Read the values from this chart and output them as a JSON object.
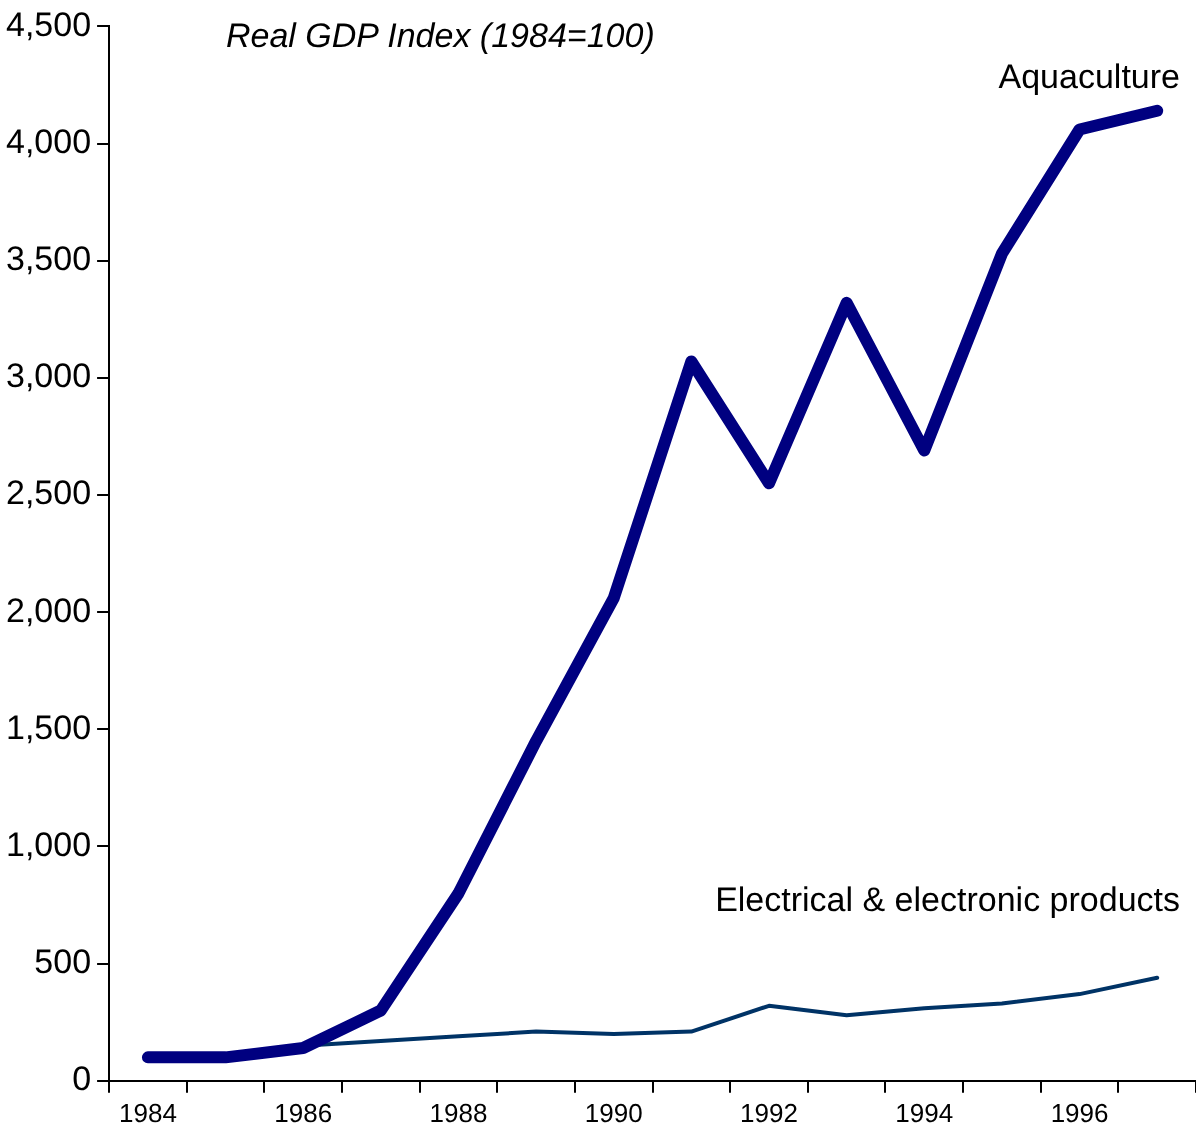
{
  "chart_data": {
    "type": "line",
    "title": "Real GDP Index (1984=100)",
    "categories": [
      "1984",
      null,
      "1986",
      null,
      "1988",
      null,
      "1990",
      null,
      "1992",
      null,
      "1994",
      null,
      "1996",
      null
    ],
    "series": [
      {
        "name": "Aquaculture",
        "color": "#000080",
        "values": [
          100,
          100,
          140,
          300,
          800,
          1450,
          2060,
          3070,
          2550,
          3320,
          2690,
          3530,
          4060,
          4140
        ]
      },
      {
        "name": "Electrical & electronic products",
        "color": "#003366",
        "values": [
          100,
          100,
          150,
          170,
          190,
          210,
          200,
          210,
          320,
          280,
          310,
          330,
          370,
          440
        ]
      }
    ],
    "ylim": [
      0,
      4500
    ],
    "yticks": [
      0,
      500,
      {
        "value": 1000,
        "label": "1,000"
      },
      {
        "value": 1500,
        "label": "1,500"
      },
      {
        "value": 2000,
        "label": "2,000"
      },
      {
        "value": 2500,
        "label": "2,500"
      },
      {
        "value": 3000,
        "label": "3,000"
      },
      {
        "value": 3500,
        "label": "3,500"
      },
      {
        "value": 4000,
        "label": "4,000"
      },
      {
        "value": 4500,
        "label": "4,500"
      }
    ],
    "grid": false,
    "legend": false,
    "marker": "none",
    "line_style": "solid"
  }
}
